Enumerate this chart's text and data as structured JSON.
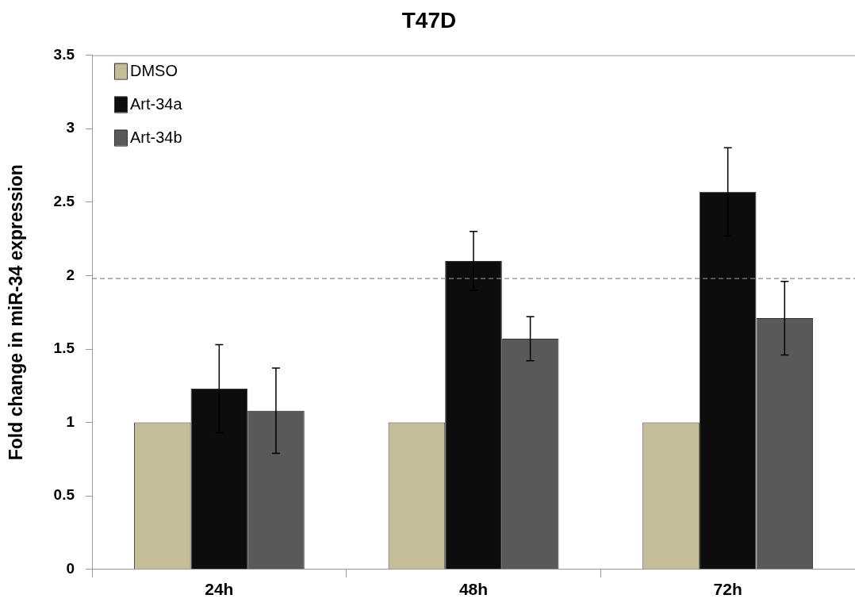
{
  "chart_data": {
    "type": "bar",
    "title": "T47D",
    "ylabel": "Fold change in miR-34 expression",
    "categories": [
      "24h",
      "48h",
      "72h"
    ],
    "series": [
      {
        "name": "DMSO",
        "color": "#c4bd97",
        "values": [
          1,
          1,
          1
        ]
      },
      {
        "name": "Art-34a",
        "color": "#0d0d0d",
        "values": [
          1.23,
          2.1,
          2.57
        ],
        "errors": [
          0.3,
          0.2,
          0.3
        ]
      },
      {
        "name": "Art-34b",
        "color": "#595959",
        "values": [
          1.08,
          1.57,
          1.71
        ],
        "errors": [
          0.29,
          0.15,
          0.25
        ]
      }
    ],
    "ylim": [
      0,
      3.5
    ],
    "yticks": [
      0,
      0.5,
      1,
      1.5,
      2,
      2.5,
      3,
      3.5
    ],
    "ref_lines": [
      {
        "axis": "y",
        "value": 1.98,
        "color": "#888888",
        "line_style": "dashed"
      }
    ],
    "legend": "top left",
    "grid": false
  }
}
